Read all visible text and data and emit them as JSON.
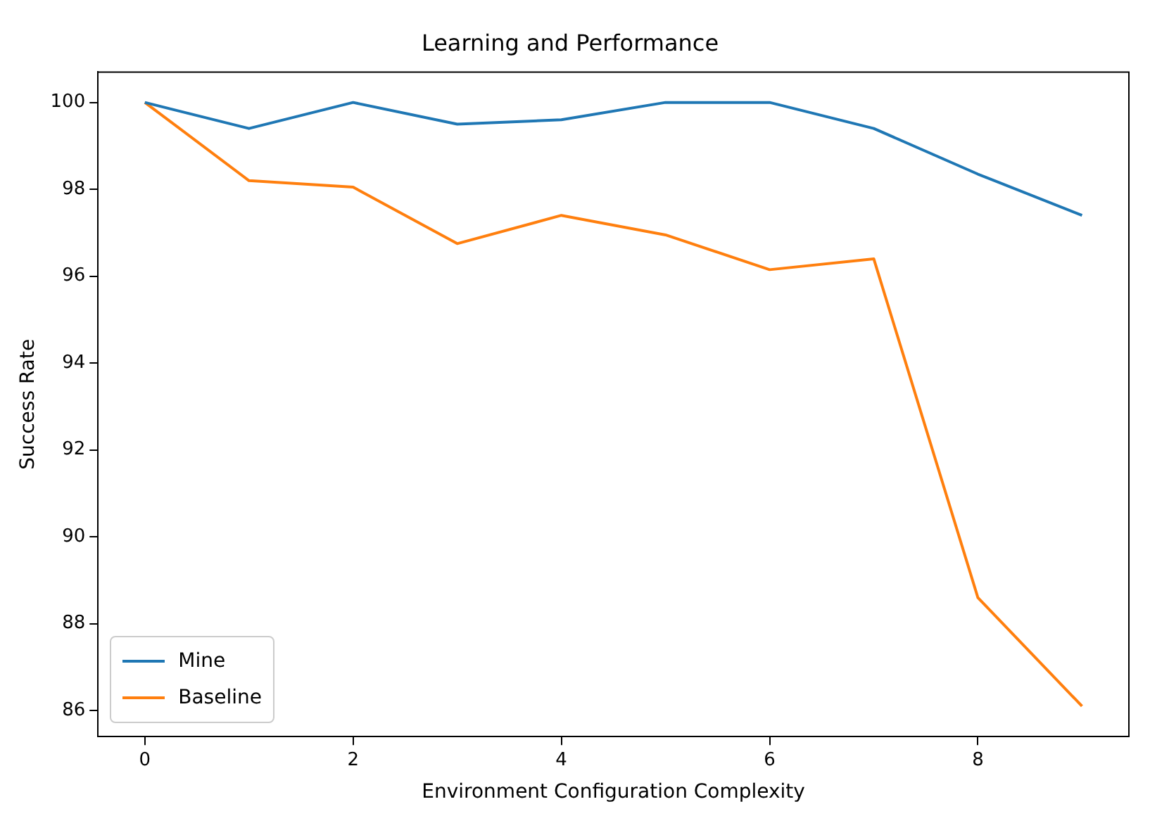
{
  "chart_data": {
    "type": "line",
    "title": "Learning and Performance",
    "xlabel": "Environment Configuration Complexity",
    "ylabel": "Success Rate",
    "x": [
      0,
      1,
      2,
      3,
      4,
      5,
      6,
      7,
      8,
      9
    ],
    "series": [
      {
        "name": "Mine",
        "color": "#1f77b4",
        "values": [
          100,
          99.4,
          100,
          99.5,
          99.6,
          100,
          100,
          99.4,
          98.35,
          97.4
        ]
      },
      {
        "name": "Baseline",
        "color": "#ff7f0e",
        "values": [
          100,
          98.2,
          98.05,
          96.75,
          97.4,
          96.95,
          96.15,
          96.4,
          88.6,
          86.1
        ]
      }
    ],
    "xlim": [
      -0.45,
      9.45
    ],
    "xticks": [
      0,
      2,
      4,
      6,
      8
    ],
    "ylim": [
      85.4,
      100.7
    ],
    "yticks": [
      86,
      88,
      90,
      92,
      94,
      96,
      98,
      100
    ],
    "grid": false,
    "legend": "bottom left",
    "marker": "none",
    "line_style": "solid"
  }
}
